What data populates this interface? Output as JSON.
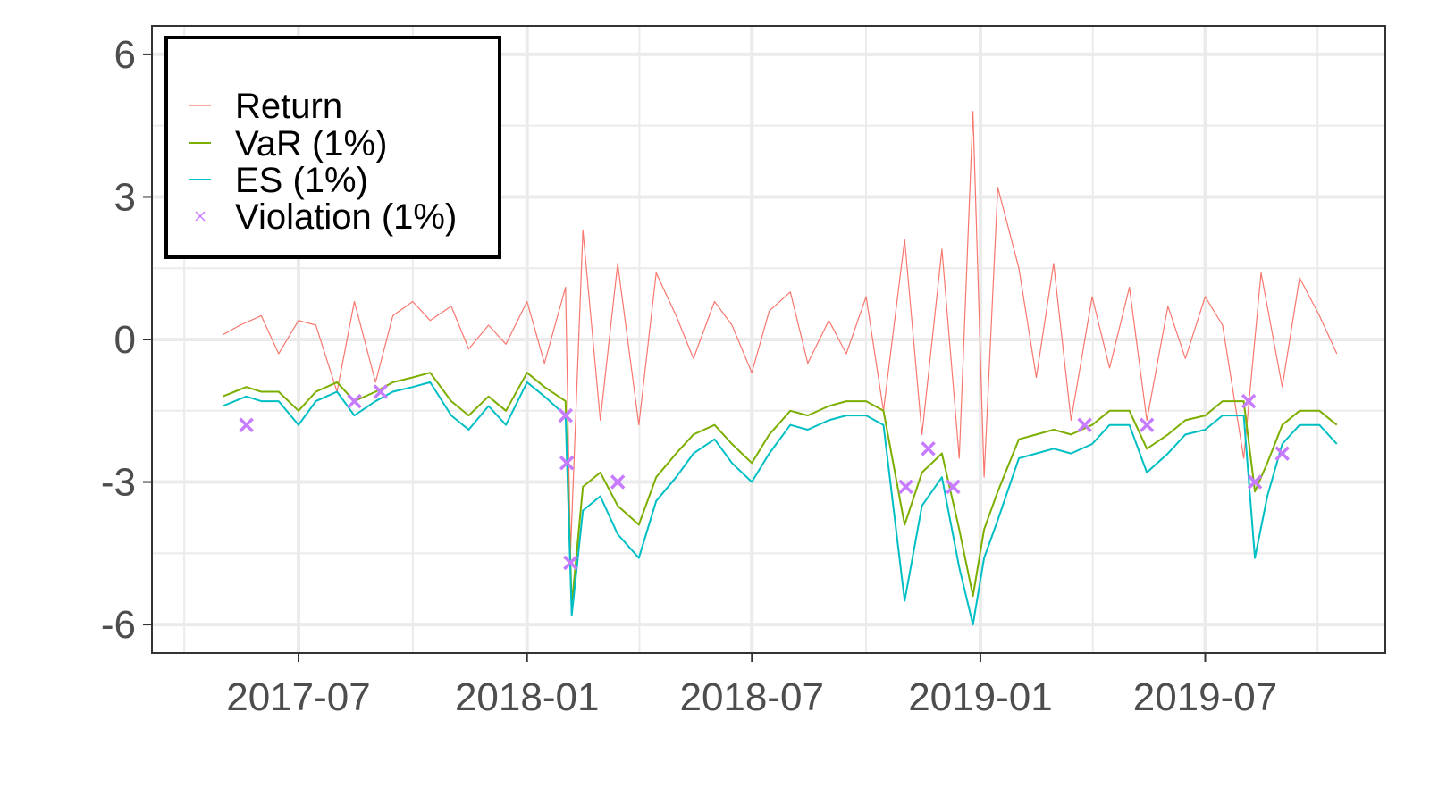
{
  "chart_data": {
    "type": "line",
    "title": "",
    "xlabel": "",
    "ylabel": "",
    "xlim": [
      "2017-03-05",
      "2019-11-23"
    ],
    "ylim": [
      -6.6,
      6.6
    ],
    "x_ticks": [
      "2017-07",
      "2018-01",
      "2018-07",
      "2019-01",
      "2019-07"
    ],
    "x_tick_dates": [
      "2017-07-01",
      "2018-01-01",
      "2018-07-01",
      "2019-01-01",
      "2019-07-01"
    ],
    "y_ticks": [
      6,
      3,
      0,
      -3,
      -6
    ],
    "y_tick_labels": [
      "6",
      "3",
      "0",
      "-3",
      "-6"
    ],
    "grid": true,
    "legend_position": "top-left",
    "series": [
      {
        "name": "Return",
        "color": "#F8766D",
        "x": [
          "2017-05-01",
          "2017-05-15",
          "2017-06-01",
          "2017-06-15",
          "2017-07-01",
          "2017-07-15",
          "2017-08-01",
          "2017-08-15",
          "2017-09-01",
          "2017-09-15",
          "2017-10-01",
          "2017-10-15",
          "2017-11-01",
          "2017-11-15",
          "2017-12-01",
          "2017-12-15",
          "2018-01-01",
          "2018-01-15",
          "2018-02-01",
          "2018-02-05",
          "2018-02-15",
          "2018-03-01",
          "2018-03-15",
          "2018-04-01",
          "2018-04-15",
          "2018-05-01",
          "2018-05-15",
          "2018-06-01",
          "2018-06-15",
          "2018-07-01",
          "2018-07-15",
          "2018-08-01",
          "2018-08-15",
          "2018-09-01",
          "2018-09-15",
          "2018-10-01",
          "2018-10-15",
          "2018-11-01",
          "2018-11-15",
          "2018-12-01",
          "2018-12-15",
          "2018-12-26",
          "2019-01-04",
          "2019-01-15",
          "2019-02-01",
          "2019-02-15",
          "2019-03-01",
          "2019-03-15",
          "2019-04-01",
          "2019-04-15",
          "2019-05-01",
          "2019-05-15",
          "2019-06-01",
          "2019-06-15",
          "2019-07-01",
          "2019-07-15",
          "2019-08-01",
          "2019-08-15",
          "2019-09-01",
          "2019-09-15",
          "2019-10-01",
          "2019-10-15"
        ],
        "values": [
          0.1,
          0.3,
          0.5,
          -0.3,
          0.4,
          0.3,
          -1.1,
          0.8,
          -0.9,
          0.5,
          0.8,
          0.4,
          0.7,
          -0.2,
          0.3,
          -0.1,
          0.8,
          -0.5,
          1.1,
          -4.5,
          2.3,
          -1.7,
          1.6,
          -1.8,
          1.4,
          0.5,
          -0.4,
          0.8,
          0.3,
          -0.7,
          0.6,
          1.0,
          -0.5,
          0.4,
          -0.3,
          0.9,
          -1.5,
          2.1,
          -2.0,
          1.9,
          -2.5,
          4.8,
          -2.9,
          3.2,
          1.5,
          -0.8,
          1.6,
          -1.7,
          0.9,
          -0.6,
          1.1,
          -1.7,
          0.7,
          -0.4,
          0.9,
          0.3,
          -2.5,
          1.4,
          -1.0,
          1.3,
          0.5,
          -0.3
        ]
      },
      {
        "name": "VaR (1%)",
        "color": "#7CAE00",
        "x": [
          "2017-05-01",
          "2017-05-20",
          "2017-06-01",
          "2017-06-15",
          "2017-07-01",
          "2017-07-15",
          "2017-08-01",
          "2017-08-15",
          "2017-09-01",
          "2017-09-15",
          "2017-10-01",
          "2017-10-15",
          "2017-11-01",
          "2017-11-15",
          "2017-12-01",
          "2017-12-15",
          "2018-01-01",
          "2018-01-15",
          "2018-02-01",
          "2018-02-06",
          "2018-02-15",
          "2018-03-01",
          "2018-03-15",
          "2018-04-01",
          "2018-04-15",
          "2018-05-01",
          "2018-05-15",
          "2018-06-01",
          "2018-06-15",
          "2018-07-01",
          "2018-07-15",
          "2018-08-01",
          "2018-08-15",
          "2018-09-01",
          "2018-09-15",
          "2018-10-01",
          "2018-10-15",
          "2018-11-01",
          "2018-11-15",
          "2018-12-01",
          "2018-12-15",
          "2018-12-26",
          "2019-01-04",
          "2019-01-15",
          "2019-02-01",
          "2019-02-15",
          "2019-03-01",
          "2019-03-15",
          "2019-04-01",
          "2019-04-15",
          "2019-05-01",
          "2019-05-15",
          "2019-06-01",
          "2019-06-15",
          "2019-07-01",
          "2019-07-15",
          "2019-08-01",
          "2019-08-10",
          "2019-08-20",
          "2019-09-01",
          "2019-09-15",
          "2019-10-01",
          "2019-10-15"
        ],
        "values": [
          -1.2,
          -1.0,
          -1.1,
          -1.1,
          -1.5,
          -1.1,
          -0.9,
          -1.3,
          -1.1,
          -0.9,
          -0.8,
          -0.7,
          -1.3,
          -1.6,
          -1.2,
          -1.5,
          -0.7,
          -1.0,
          -1.3,
          -5.6,
          -3.1,
          -2.8,
          -3.5,
          -3.9,
          -2.9,
          -2.4,
          -2.0,
          -1.8,
          -2.2,
          -2.6,
          -2.0,
          -1.5,
          -1.6,
          -1.4,
          -1.3,
          -1.3,
          -1.5,
          -3.9,
          -2.8,
          -2.4,
          -4.0,
          -5.4,
          -4.0,
          -3.2,
          -2.1,
          -2.0,
          -1.9,
          -2.0,
          -1.8,
          -1.5,
          -1.5,
          -2.3,
          -2.0,
          -1.7,
          -1.6,
          -1.3,
          -1.3,
          -3.2,
          -2.6,
          -1.8,
          -1.5,
          -1.5,
          -1.8
        ]
      },
      {
        "name": "ES (1%)",
        "color": "#00BFC4",
        "x": [
          "2017-05-01",
          "2017-05-20",
          "2017-06-01",
          "2017-06-15",
          "2017-07-01",
          "2017-07-15",
          "2017-08-01",
          "2017-08-15",
          "2017-09-01",
          "2017-09-15",
          "2017-10-01",
          "2017-10-15",
          "2017-11-01",
          "2017-11-15",
          "2017-12-01",
          "2017-12-15",
          "2018-01-01",
          "2018-01-15",
          "2018-02-01",
          "2018-02-06",
          "2018-02-15",
          "2018-03-01",
          "2018-03-15",
          "2018-04-01",
          "2018-04-15",
          "2018-05-01",
          "2018-05-15",
          "2018-06-01",
          "2018-06-15",
          "2018-07-01",
          "2018-07-15",
          "2018-08-01",
          "2018-08-15",
          "2018-09-01",
          "2018-09-15",
          "2018-10-01",
          "2018-10-15",
          "2018-11-01",
          "2018-11-15",
          "2018-12-01",
          "2018-12-15",
          "2018-12-26",
          "2019-01-04",
          "2019-01-15",
          "2019-02-01",
          "2019-02-15",
          "2019-03-01",
          "2019-03-15",
          "2019-04-01",
          "2019-04-15",
          "2019-05-01",
          "2019-05-15",
          "2019-06-01",
          "2019-06-15",
          "2019-07-01",
          "2019-07-15",
          "2019-08-01",
          "2019-08-10",
          "2019-08-20",
          "2019-09-01",
          "2019-09-15",
          "2019-10-01",
          "2019-10-15"
        ],
        "values": [
          -1.4,
          -1.2,
          -1.3,
          -1.3,
          -1.8,
          -1.3,
          -1.1,
          -1.6,
          -1.3,
          -1.1,
          -1.0,
          -0.9,
          -1.6,
          -1.9,
          -1.4,
          -1.8,
          -0.9,
          -1.2,
          -1.6,
          -5.8,
          -3.6,
          -3.3,
          -4.1,
          -4.6,
          -3.4,
          -2.9,
          -2.4,
          -2.1,
          -2.6,
          -3.0,
          -2.4,
          -1.8,
          -1.9,
          -1.7,
          -1.6,
          -1.6,
          -1.8,
          -5.5,
          -3.5,
          -2.9,
          -4.8,
          -6.0,
          -4.6,
          -3.8,
          -2.5,
          -2.4,
          -2.3,
          -2.4,
          -2.2,
          -1.8,
          -1.8,
          -2.8,
          -2.4,
          -2.0,
          -1.9,
          -1.6,
          -1.6,
          -4.6,
          -3.3,
          -2.2,
          -1.8,
          -1.8,
          -2.2
        ]
      },
      {
        "name": "Violation (1%)",
        "color": "#C77CFF",
        "marker": "x",
        "x": [
          "2017-05-20",
          "2017-08-15",
          "2017-09-05",
          "2018-02-01",
          "2018-02-02",
          "2018-02-05",
          "2018-03-15",
          "2018-11-02",
          "2018-11-20",
          "2018-12-10",
          "2019-03-26",
          "2019-05-15",
          "2019-08-05",
          "2019-08-10",
          "2019-09-01"
        ],
        "values": [
          -1.8,
          -1.3,
          -1.1,
          -1.6,
          -2.6,
          -4.7,
          -3.0,
          -3.1,
          -2.3,
          -3.1,
          -1.8,
          -1.8,
          -1.3,
          -3.0,
          -2.4
        ]
      }
    ]
  }
}
